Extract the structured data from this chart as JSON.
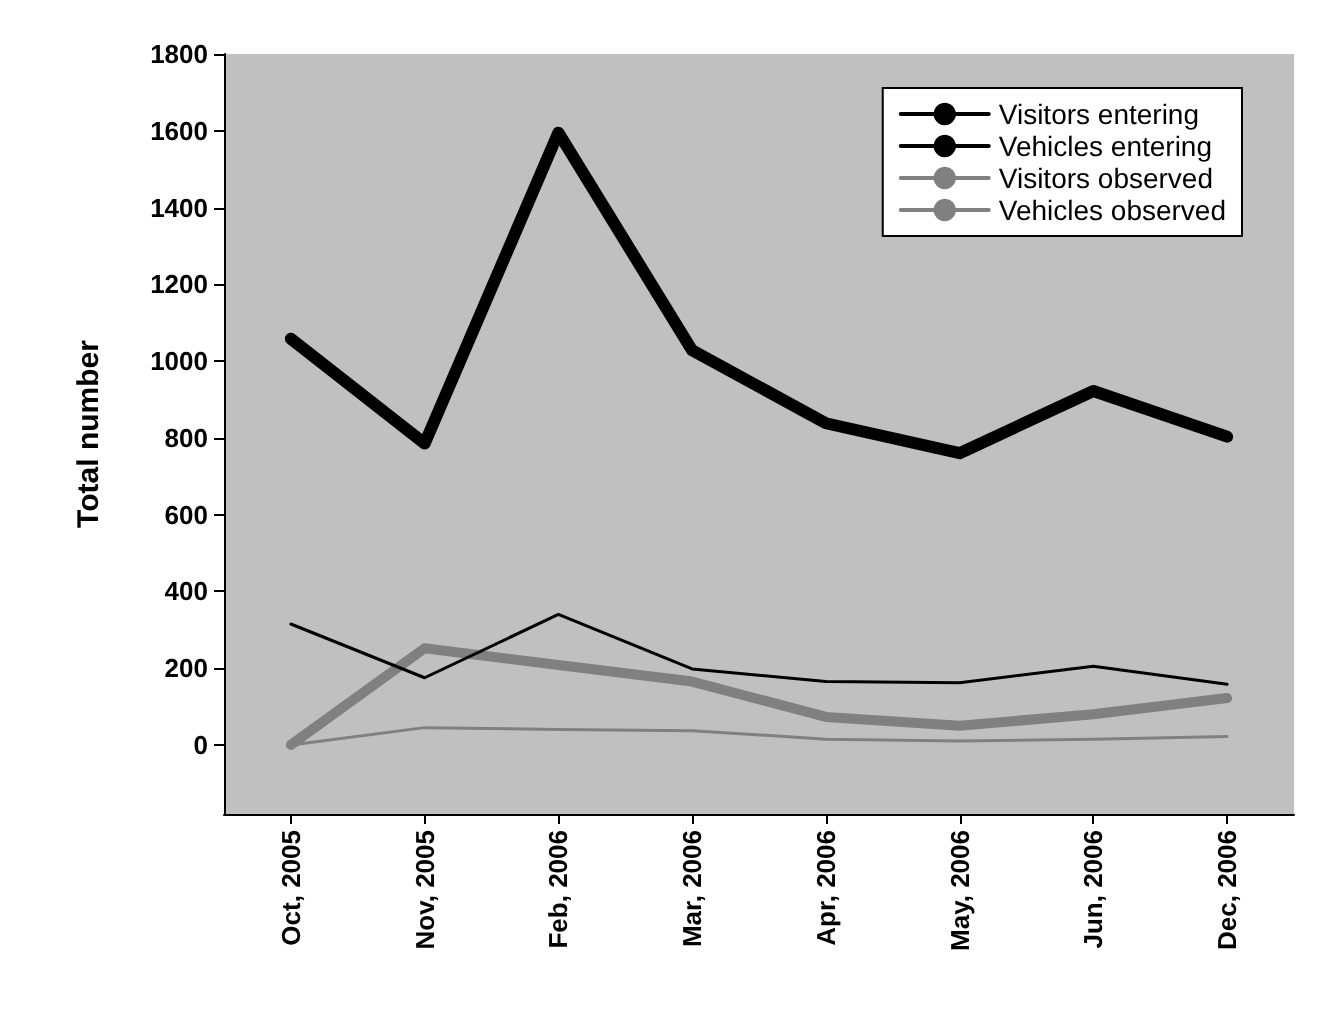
{
  "chart_data": {
    "type": "line",
    "ylabel": "Total number",
    "categories": [
      "Oct, 2005",
      "Nov, 2005",
      "Feb, 2006",
      "Mar, 2006",
      "Apr, 2006",
      "May, 2006",
      "Jun, 2006",
      "Dec, 2006"
    ],
    "series": [
      {
        "name": "Visitors entering",
        "color": "#000000",
        "values": [
          1058,
          785,
          1595,
          1028,
          838,
          760,
          922,
          803
        ]
      },
      {
        "name": "Vehicles entering",
        "color": "#000000",
        "values": [
          315,
          175,
          340,
          198,
          165,
          162,
          205,
          158
        ]
      },
      {
        "name": "Visitors observed",
        "color": "#808080",
        "values": [
          0,
          252,
          208,
          165,
          73,
          50,
          80,
          122
        ]
      },
      {
        "name": "Vehicles observed",
        "color": "#808080",
        "values": [
          0,
          45,
          40,
          37,
          15,
          10,
          15,
          22
        ]
      }
    ],
    "ylim": [
      -180,
      1800
    ],
    "yticks": [
      0,
      200,
      400,
      600,
      800,
      1000,
      1200,
      1400,
      1600,
      1800
    ],
    "grid": false,
    "legend": "top right",
    "marker": "none",
    "line_style": "solid"
  }
}
